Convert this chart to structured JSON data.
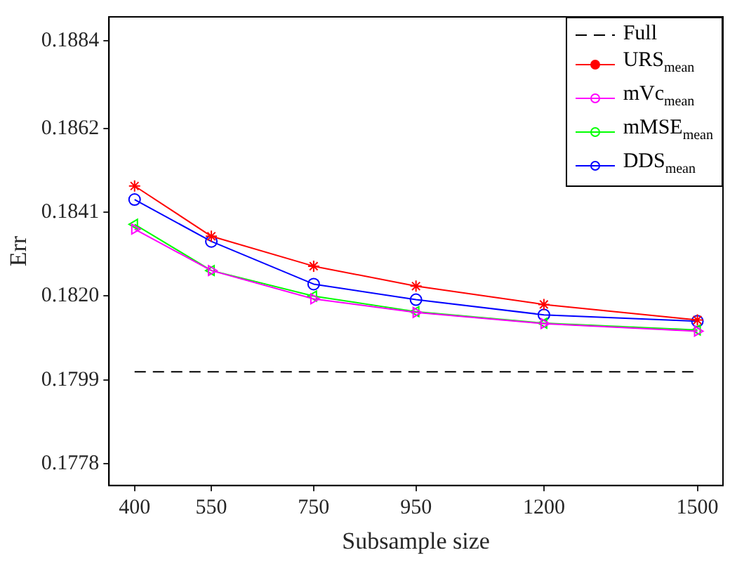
{
  "chart_data": {
    "type": "line",
    "xlabel": "Subsample size",
    "ylabel": "Err",
    "x": [
      400,
      550,
      750,
      950,
      1200,
      1500
    ],
    "xlim": [
      350,
      1550
    ],
    "xticks": [
      400,
      550,
      750,
      950,
      1200,
      1500
    ],
    "ylim": [
      0.17725,
      0.189
    ],
    "yticks": [
      0.1778,
      0.1799,
      {
        "value": 0.182,
        "label": "0.1820"
      },
      0.1841,
      0.1862,
      0.1884
    ],
    "grid": false,
    "legend": "top right",
    "series": [
      {
        "name": "Full",
        "color": "#000000",
        "marker": "none",
        "line_style": "dashed",
        "values": [
          0.1801,
          0.1801,
          0.1801,
          0.1801,
          0.1801,
          0.1801
        ]
      },
      {
        "name": "URS$_{mean}$",
        "color": "#ff0000",
        "marker": "cross",
        "values": [
          0.18476,
          0.1835,
          0.18275,
          0.18225,
          0.18179,
          0.1814
        ]
      },
      {
        "name": "mVc$_{mean}$",
        "color": "#ff00ff",
        "marker": "triangle",
        "values": [
          0.18368,
          0.18264,
          0.18193,
          0.18159,
          0.18131,
          0.18112
        ]
      },
      {
        "name": "mMSE$_{mean}$",
        "color": "#00ff00",
        "marker": "triangle",
        "values": [
          0.1838,
          0.18264,
          0.182,
          0.18161,
          0.18132,
          0.18115
        ]
      },
      {
        "name": "DDS$_{mean}$",
        "color": "#0000ff",
        "marker": "circle",
        "values": [
          0.18442,
          0.18337,
          0.1823,
          0.18191,
          0.18153,
          0.18137
        ]
      }
    ]
  }
}
